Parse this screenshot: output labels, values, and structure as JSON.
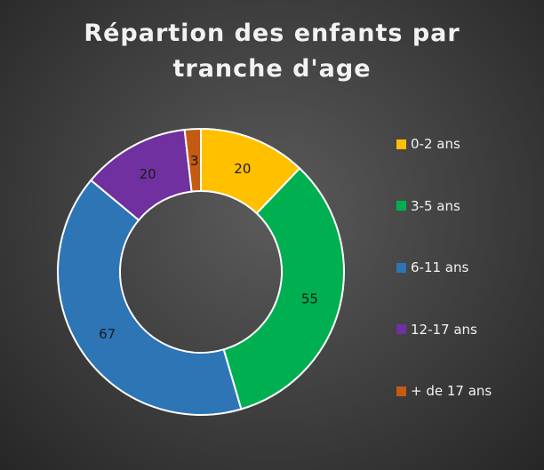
{
  "chart_data": {
    "type": "pie",
    "variant": "donut",
    "title": "Répartion des enfants par tranche d'age",
    "title_lines": [
      "Répartion des enfants par",
      "tranche d'age"
    ],
    "categories": [
      "0-2 ans",
      "3-5 ans",
      "6-11 ans",
      "12-17 ans",
      "+ de 17 ans"
    ],
    "values": [
      20,
      55,
      67,
      20,
      3
    ],
    "colors": [
      "#ffc000",
      "#00b050",
      "#2e75b6",
      "#7030a0",
      "#c55a11"
    ],
    "data_labels": [
      "20",
      "55",
      "67",
      "20",
      "3"
    ],
    "legend_position": "right",
    "background": "#404040",
    "title_color": "#f2f2f2",
    "label_color": "#1a1a1a",
    "slice_border_color": "#ffffff"
  }
}
